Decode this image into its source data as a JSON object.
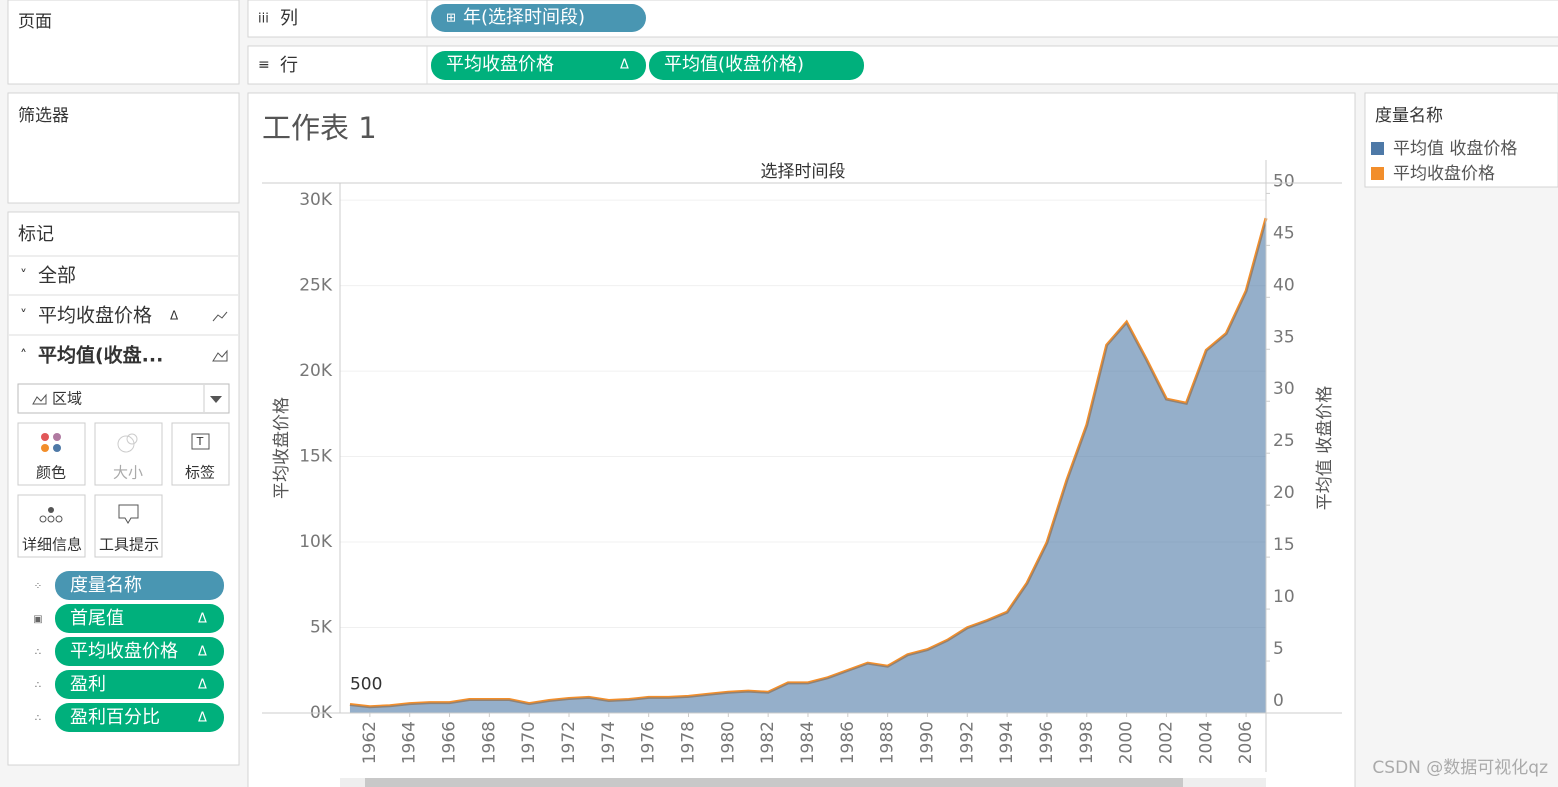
{
  "shelves": {
    "pages": "页面",
    "filters": "筛选器",
    "columns_label": "列",
    "columns_pill": "年(选择时间段)",
    "rows_label": "行",
    "rows_pills": [
      "平均收盘价格",
      "平均值(收盘价格)"
    ]
  },
  "marks": {
    "title": "标记",
    "cards": [
      "全部",
      "平均收盘价格",
      "平均值(收盘..."
    ],
    "mark_type": "区域",
    "buttons": [
      "颜色",
      "大小",
      "标签",
      "详细信息",
      "工具提示"
    ],
    "pills": [
      "度量名称",
      "首尾值",
      "平均收盘价格",
      "盈利",
      "盈利百分比"
    ]
  },
  "legend": {
    "title": "度量名称"
  },
  "watermark": "CSDN @数据可视化qz",
  "chart_data": {
    "type": "area",
    "title": "工作表 1",
    "x_axis_title": "选择时间段",
    "y_label": "平均收盘价格",
    "y2_label": "平均值 收盘价格",
    "x": [
      1961,
      1962,
      1963,
      1964,
      1965,
      1966,
      1967,
      1968,
      1969,
      1970,
      1971,
      1972,
      1973,
      1974,
      1975,
      1976,
      1977,
      1978,
      1979,
      1980,
      1981,
      1982,
      1983,
      1984,
      1985,
      1986,
      1987,
      1988,
      1989,
      1990,
      1991,
      1992,
      1993,
      1994,
      1995,
      1996,
      1997,
      1998,
      1999,
      2000,
      2001,
      2002,
      2003,
      2004,
      2005,
      2006,
      2007
    ],
    "xlim": [
      1960.5,
      2007
    ],
    "xticks": [
      1962,
      1964,
      1966,
      1968,
      1970,
      1972,
      1974,
      1976,
      1978,
      1980,
      1982,
      1984,
      1986,
      1988,
      1990,
      1992,
      1994,
      1996,
      1998,
      2000,
      2002,
      2004,
      2006
    ],
    "ylim": [
      0,
      31000
    ],
    "yticks": [
      {
        "value": 0,
        "label": "0K"
      },
      {
        "value": 5000,
        "label": "5K"
      },
      {
        "value": 10000,
        "label": "10K"
      },
      {
        "value": 15000,
        "label": "15K"
      },
      {
        "value": 20000,
        "label": "20K"
      },
      {
        "value": 25000,
        "label": "25K"
      },
      {
        "value": 30000,
        "label": "30K"
      }
    ],
    "y2lim": [
      0,
      51
    ],
    "y2ticks": [
      0,
      5,
      10,
      15,
      20,
      25,
      30,
      35,
      40,
      45,
      50
    ],
    "grid": true,
    "series": [
      {
        "name": "平均值 收盘价格",
        "color": "#4e79a7",
        "type": "area",
        "axis": "y2",
        "values": [
          0.8,
          0.6,
          0.7,
          0.9,
          1.0,
          1.0,
          1.3,
          1.3,
          1.3,
          0.9,
          1.2,
          1.4,
          1.5,
          1.2,
          1.3,
          1.5,
          1.5,
          1.6,
          1.8,
          2.0,
          2.1,
          2.0,
          2.9,
          2.9,
          3.4,
          4.1,
          4.8,
          4.5,
          5.6,
          6.1,
          7.0,
          8.2,
          8.9,
          9.7,
          12.5,
          16.4,
          22.4,
          27.7,
          35.4,
          37.6,
          34.0,
          30.2,
          29.8,
          34.9,
          36.5,
          40.6,
          47.6
        ]
      },
      {
        "name": "平均收盘价格",
        "color": "#f28e2b",
        "type": "line",
        "values": [
          500,
          365,
          426,
          547,
          608,
          608,
          790,
          790,
          790,
          547,
          730,
          851,
          912,
          730,
          790,
          912,
          912,
          973,
          1094,
          1216,
          1277,
          1216,
          1763,
          1763,
          2067,
          2493,
          2918,
          2736,
          3405,
          3709,
          4256,
          4986,
          5411,
          5898,
          7600,
          9971,
          13619,
          16842,
          21523,
          22861,
          20672,
          18362,
          18118,
          21219,
          22192,
          24685,
          28941
        ]
      }
    ]
  }
}
